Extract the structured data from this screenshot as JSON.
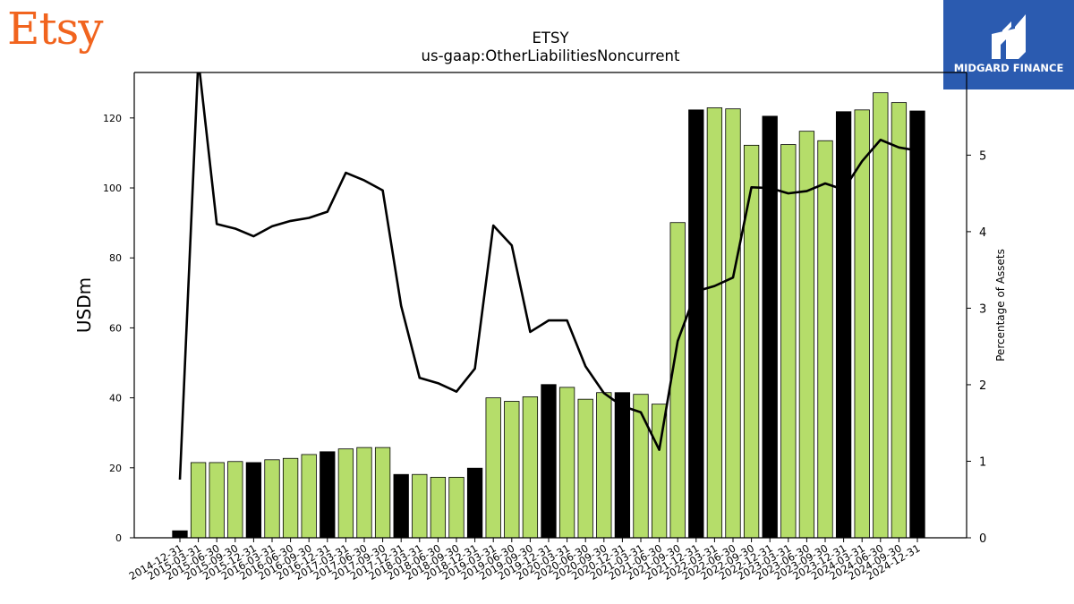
{
  "brand": {
    "logo_text": "Etsy",
    "logo_color": "#F1641E"
  },
  "partner": {
    "name": "MIDGARD FINANCE",
    "bg_color": "#2B5BB0",
    "icon": "midgard-logo-icon"
  },
  "chart_data": {
    "type": "bar",
    "title": "ETSY",
    "subtitle": "us-gaap:OtherLiabilitiesNoncurrent",
    "ylabel": "USDm",
    "y2label": "Percentage of Assets",
    "ylim": [
      0,
      133
    ],
    "y2lim": [
      0,
      6.08
    ],
    "yticks": [
      0,
      20,
      40,
      60,
      80,
      100,
      120
    ],
    "y2ticks": [
      0,
      1,
      2,
      3,
      4,
      5
    ],
    "grid": false,
    "colors": {
      "bar_default": "#B5DD6A",
      "bar_highlight": "#000000",
      "line": "#000000"
    },
    "categories": [
      "2014-12-31",
      "2015-03-31",
      "2015-06-30",
      "2015-09-30",
      "2015-12-31",
      "2016-03-31",
      "2016-06-30",
      "2016-09-30",
      "2016-12-31",
      "2017-03-31",
      "2017-06-30",
      "2017-09-30",
      "2017-12-31",
      "2018-03-31",
      "2018-06-30",
      "2018-09-30",
      "2018-12-31",
      "2019-03-31",
      "2019-06-30",
      "2019-09-30",
      "2019-12-31",
      "2020-03-31",
      "2020-06-30",
      "2020-09-30",
      "2020-12-31",
      "2021-03-31",
      "2021-06-30",
      "2021-09-30",
      "2021-12-31",
      "2022-03-31",
      "2022-06-30",
      "2022-09-30",
      "2022-12-31",
      "2023-03-31",
      "2023-06-30",
      "2023-09-30",
      "2023-12-31",
      "2024-03-31",
      "2024-06-30",
      "2024-09-30",
      "2024-12-31"
    ],
    "series": [
      {
        "kind": "bar",
        "values": [
          2.0,
          21.5,
          21.5,
          21.8,
          21.5,
          22.3,
          22.7,
          23.8,
          24.6,
          25.4,
          25.8,
          25.8,
          18.1,
          18.1,
          17.3,
          17.3,
          19.9,
          40.0,
          39.0,
          40.3,
          43.8,
          43.0,
          39.6,
          41.5,
          41.5,
          41.0,
          38.2,
          90.1,
          122.3,
          122.9,
          122.6,
          112.2,
          120.5,
          112.4,
          116.2,
          113.5,
          121.8,
          122.3,
          127.2,
          124.4,
          122.0
        ],
        "highlight": [
          true,
          false,
          false,
          false,
          true,
          false,
          false,
          false,
          true,
          false,
          false,
          false,
          true,
          false,
          false,
          false,
          true,
          false,
          false,
          false,
          true,
          false,
          false,
          false,
          true,
          false,
          false,
          false,
          true,
          false,
          false,
          false,
          true,
          false,
          false,
          false,
          true,
          false,
          false,
          false,
          true
        ]
      },
      {
        "kind": "line",
        "axis": "right",
        "values": [
          0.76,
          6.25,
          4.1,
          4.04,
          3.94,
          4.07,
          4.14,
          4.18,
          4.26,
          4.77,
          4.67,
          4.54,
          3.03,
          2.09,
          2.02,
          1.91,
          2.21,
          4.08,
          3.82,
          2.69,
          2.84,
          2.84,
          2.24,
          1.89,
          1.72,
          1.64,
          1.15,
          2.57,
          3.22,
          3.29,
          3.4,
          4.58,
          4.57,
          4.5,
          4.53,
          4.63,
          4.55,
          4.92,
          5.2,
          5.1,
          5.06
        ]
      }
    ]
  }
}
